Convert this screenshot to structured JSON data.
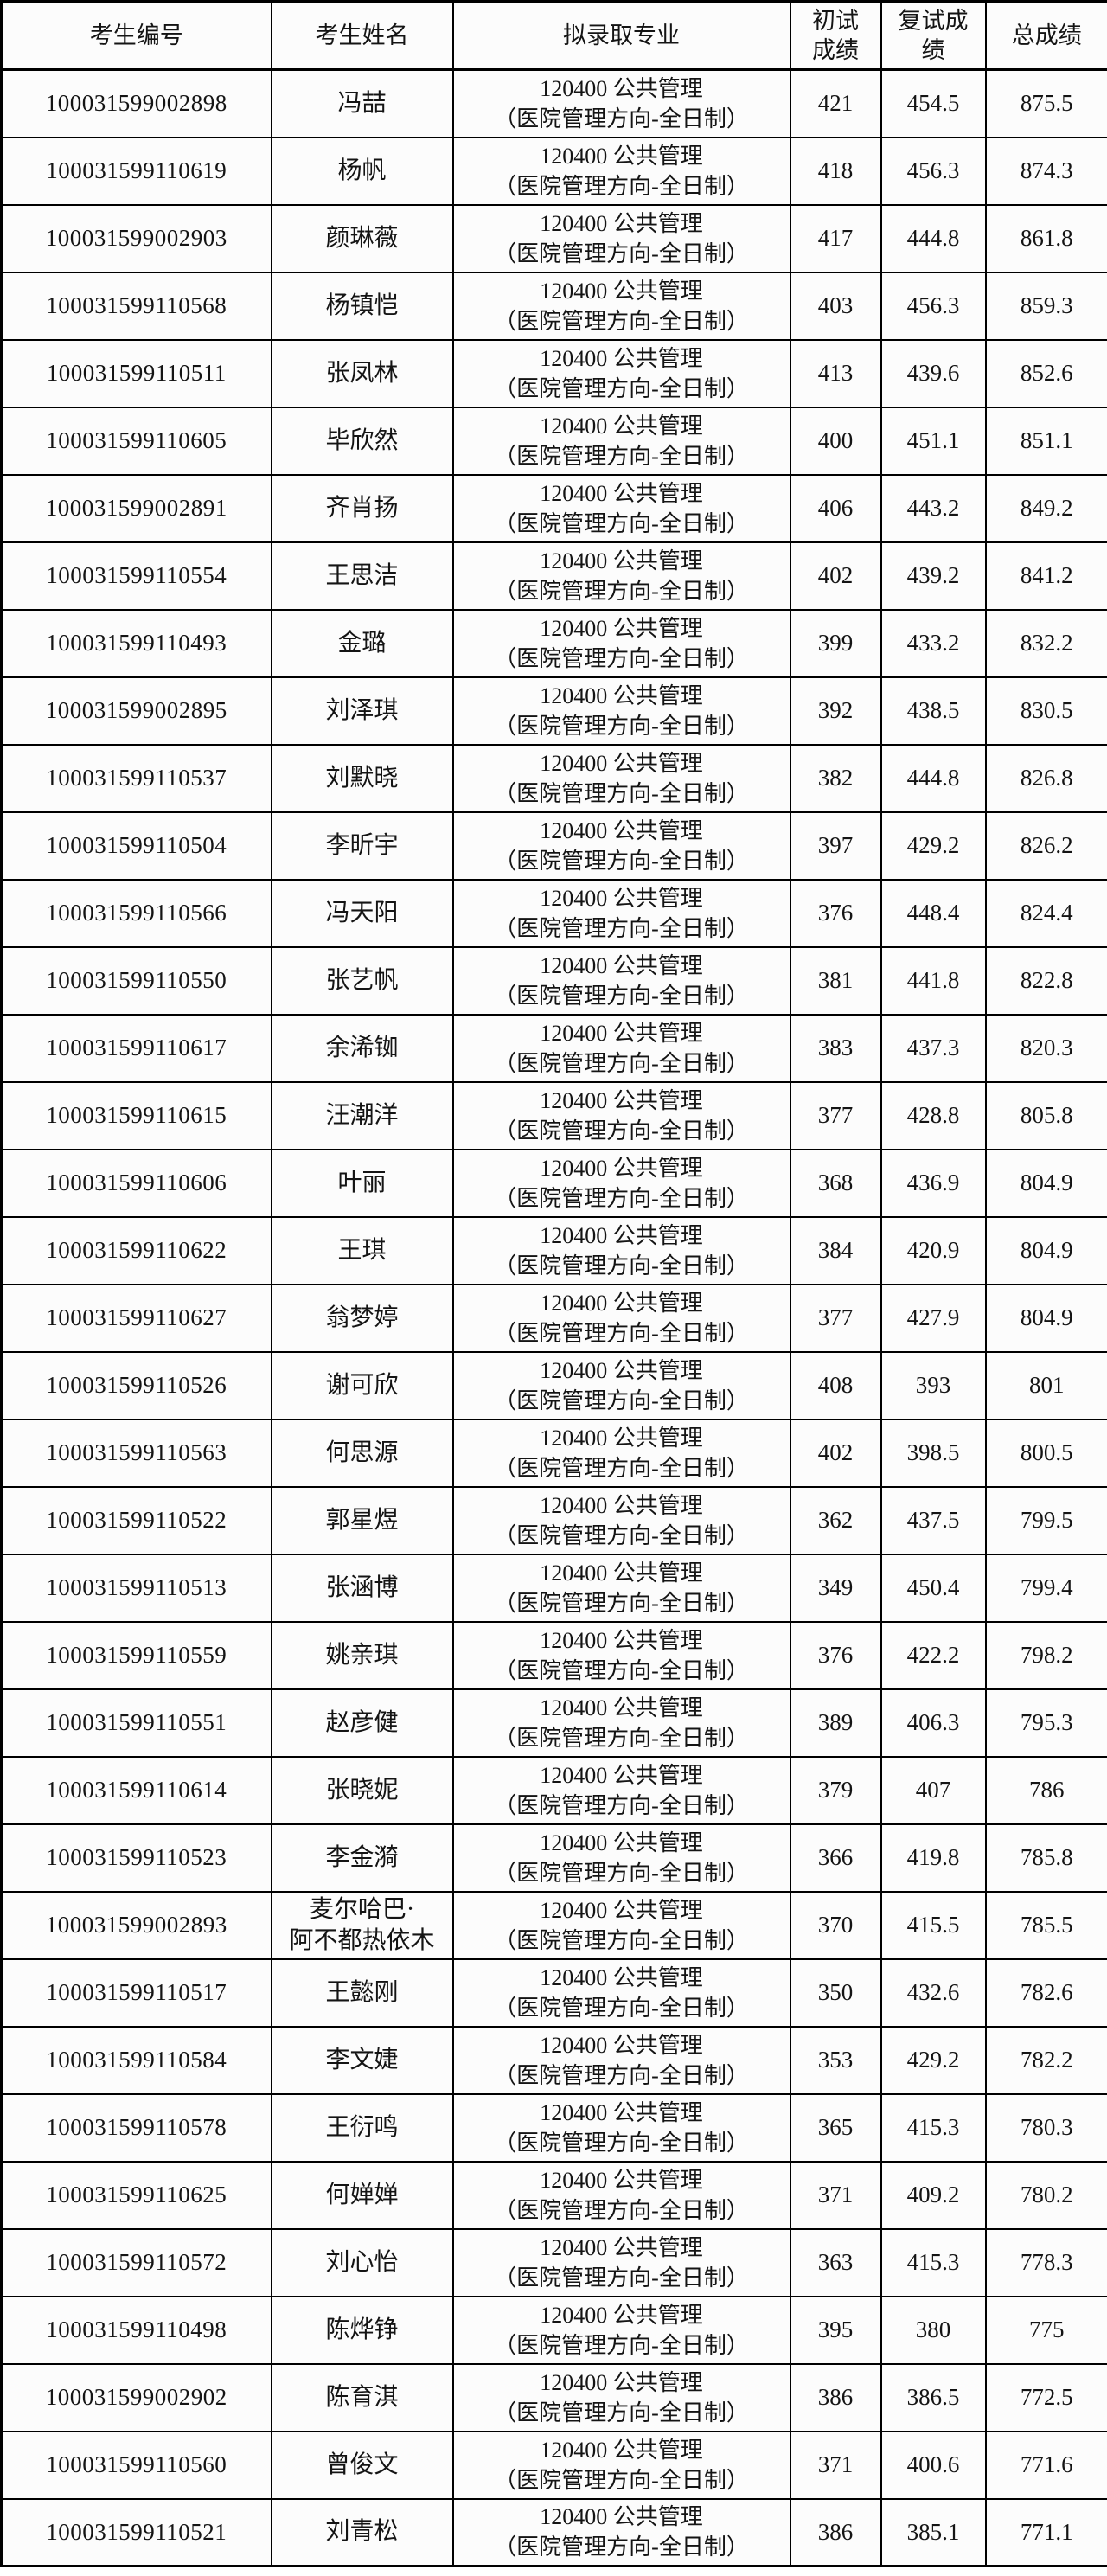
{
  "table": {
    "columns": [
      "考生编号",
      "考生姓名",
      "拟录取专业",
      "初试成绩",
      "复试成绩",
      "总成绩"
    ],
    "program": {
      "line1": "120400 公共管理",
      "line2": "（医院管理方向-全日制）"
    },
    "rows": [
      {
        "id": "100031599002898",
        "name": "冯喆",
        "initial": "421",
        "retest": "454.5",
        "total": "875.5"
      },
      {
        "id": "100031599110619",
        "name": "杨帆",
        "initial": "418",
        "retest": "456.3",
        "total": "874.3"
      },
      {
        "id": "100031599002903",
        "name": "颜琳薇",
        "initial": "417",
        "retest": "444.8",
        "total": "861.8"
      },
      {
        "id": "100031599110568",
        "name": "杨镇恺",
        "initial": "403",
        "retest": "456.3",
        "total": "859.3"
      },
      {
        "id": "100031599110511",
        "name": "张凤林",
        "initial": "413",
        "retest": "439.6",
        "total": "852.6"
      },
      {
        "id": "100031599110605",
        "name": "毕欣然",
        "initial": "400",
        "retest": "451.1",
        "total": "851.1"
      },
      {
        "id": "100031599002891",
        "name": "齐肖扬",
        "initial": "406",
        "retest": "443.2",
        "total": "849.2"
      },
      {
        "id": "100031599110554",
        "name": "王思洁",
        "initial": "402",
        "retest": "439.2",
        "total": "841.2"
      },
      {
        "id": "100031599110493",
        "name": "金璐",
        "initial": "399",
        "retest": "433.2",
        "total": "832.2"
      },
      {
        "id": "100031599002895",
        "name": "刘泽琪",
        "initial": "392",
        "retest": "438.5",
        "total": "830.5"
      },
      {
        "id": "100031599110537",
        "name": "刘默晓",
        "initial": "382",
        "retest": "444.8",
        "total": "826.8"
      },
      {
        "id": "100031599110504",
        "name": "李昕宇",
        "initial": "397",
        "retest": "429.2",
        "total": "826.2"
      },
      {
        "id": "100031599110566",
        "name": "冯天阳",
        "initial": "376",
        "retest": "448.4",
        "total": "824.4"
      },
      {
        "id": "100031599110550",
        "name": "张艺帆",
        "initial": "381",
        "retest": "441.8",
        "total": "822.8"
      },
      {
        "id": "100031599110617",
        "name": "余浠铷",
        "initial": "383",
        "retest": "437.3",
        "total": "820.3"
      },
      {
        "id": "100031599110615",
        "name": "汪潮洋",
        "initial": "377",
        "retest": "428.8",
        "total": "805.8"
      },
      {
        "id": "100031599110606",
        "name": "叶丽",
        "initial": "368",
        "retest": "436.9",
        "total": "804.9"
      },
      {
        "id": "100031599110622",
        "name": "王琪",
        "initial": "384",
        "retest": "420.9",
        "total": "804.9"
      },
      {
        "id": "100031599110627",
        "name": "翁梦婷",
        "initial": "377",
        "retest": "427.9",
        "total": "804.9"
      },
      {
        "id": "100031599110526",
        "name": "谢可欣",
        "initial": "408",
        "retest": "393",
        "total": "801"
      },
      {
        "id": "100031599110563",
        "name": "何思源",
        "initial": "402",
        "retest": "398.5",
        "total": "800.5"
      },
      {
        "id": "100031599110522",
        "name": "郭星煜",
        "initial": "362",
        "retest": "437.5",
        "total": "799.5"
      },
      {
        "id": "100031599110513",
        "name": "张涵博",
        "initial": "349",
        "retest": "450.4",
        "total": "799.4"
      },
      {
        "id": "100031599110559",
        "name": "姚亲琪",
        "initial": "376",
        "retest": "422.2",
        "total": "798.2"
      },
      {
        "id": "100031599110551",
        "name": "赵彦健",
        "initial": "389",
        "retest": "406.3",
        "total": "795.3"
      },
      {
        "id": "100031599110614",
        "name": "张晓妮",
        "initial": "379",
        "retest": "407",
        "total": "786"
      },
      {
        "id": "100031599110523",
        "name": "李金漪",
        "initial": "366",
        "retest": "419.8",
        "total": "785.8"
      },
      {
        "id": "100031599002893",
        "name": "麦尔哈巴·\n阿不都热依木",
        "initial": "370",
        "retest": "415.5",
        "total": "785.5"
      },
      {
        "id": "100031599110517",
        "name": "王懿刚",
        "initial": "350",
        "retest": "432.6",
        "total": "782.6"
      },
      {
        "id": "100031599110584",
        "name": "李文婕",
        "initial": "353",
        "retest": "429.2",
        "total": "782.2"
      },
      {
        "id": "100031599110578",
        "name": "王衍鸣",
        "initial": "365",
        "retest": "415.3",
        "total": "780.3"
      },
      {
        "id": "100031599110625",
        "name": "何婵婵",
        "initial": "371",
        "retest": "409.2",
        "total": "780.2"
      },
      {
        "id": "100031599110572",
        "name": "刘心怡",
        "initial": "363",
        "retest": "415.3",
        "total": "778.3"
      },
      {
        "id": "100031599110498",
        "name": "陈烨铮",
        "initial": "395",
        "retest": "380",
        "total": "775"
      },
      {
        "id": "100031599002902",
        "name": "陈育淇",
        "initial": "386",
        "retest": "386.5",
        "total": "772.5"
      },
      {
        "id": "100031599110560",
        "name": "曾俊文",
        "initial": "371",
        "retest": "400.6",
        "total": "771.6"
      },
      {
        "id": "100031599110521",
        "name": "刘青松",
        "initial": "386",
        "retest": "385.1",
        "total": "771.1"
      }
    ]
  }
}
